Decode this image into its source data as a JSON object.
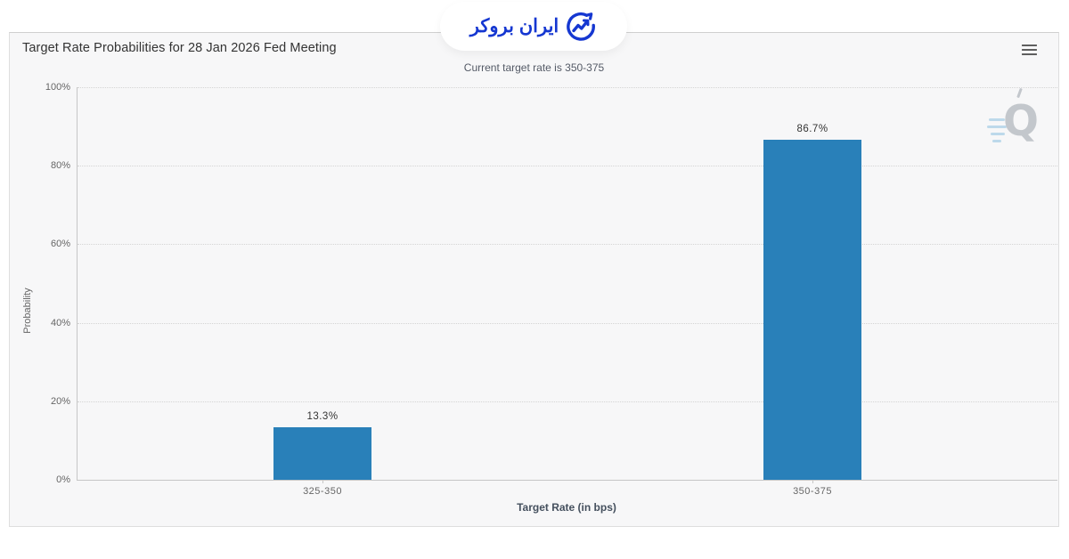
{
  "header": {
    "logo": {
      "text": "ایران بروکر"
    }
  },
  "chart": {
    "title": "Target Rate Probabilities for 28 Jan 2026 Fed Meeting",
    "subtitle": "Current target rate is 350-375",
    "watermark_letter": "Q",
    "menu_icon": "hamburger-icon"
  },
  "chart_data": {
    "type": "bar",
    "title": "Target Rate Probabilities for 28 Jan 2026 Fed Meeting",
    "subtitle": "Current target rate is 350-375",
    "categories": [
      "325-350",
      "350-375"
    ],
    "values": [
      13.3,
      86.7
    ],
    "value_labels": [
      "13.3%",
      "86.7%"
    ],
    "xlabel": "Target Rate (in bps)",
    "ylabel": "Probability",
    "ylim": [
      0,
      100
    ],
    "ytick_interval": 20,
    "ytick_labels": [
      "0%",
      "20%",
      "40%",
      "60%",
      "80%",
      "100%"
    ],
    "grid": "horizontal-dotted",
    "legend": "none",
    "bar_color": "#2980b9"
  },
  "colors": {
    "bar": "#2980b9",
    "logo_blue": "#1537d1",
    "panel_bg": "#f7f7f8"
  }
}
